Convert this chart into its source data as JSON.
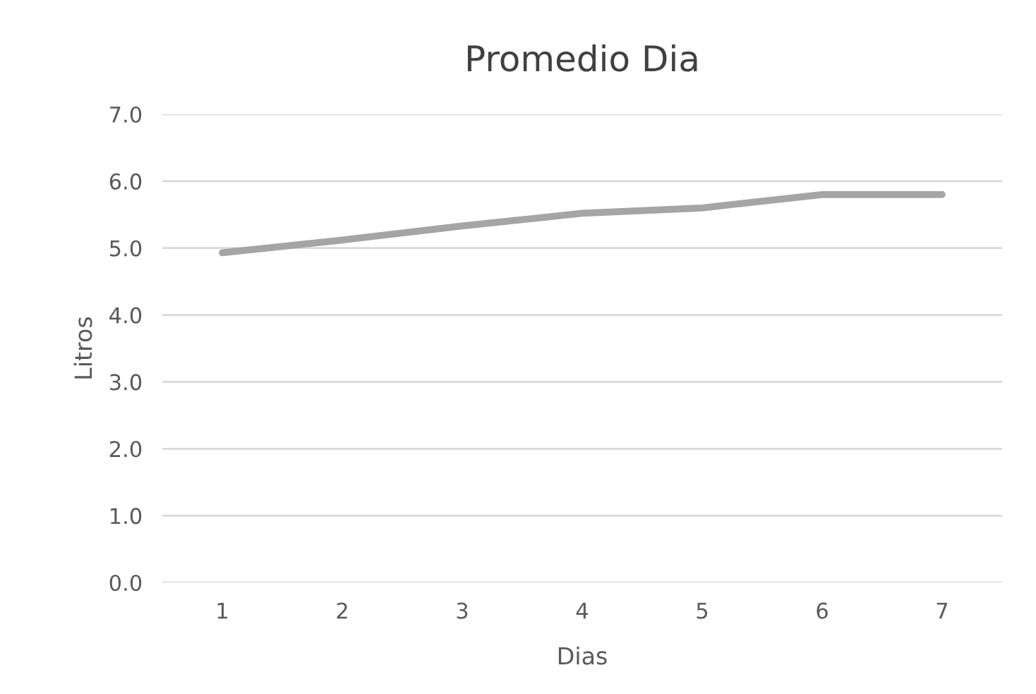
{
  "chart_data": {
    "type": "line",
    "title": "Promedio Dia",
    "xlabel": "Dias",
    "ylabel": "Litros",
    "categories": [
      "1",
      "2",
      "3",
      "4",
      "5",
      "6",
      "7"
    ],
    "series": [
      {
        "color": "#a5a5a5",
        "values": [
          4.93,
          5.12,
          5.33,
          5.52,
          5.6,
          5.8,
          5.8
        ]
      }
    ],
    "ylim": [
      0,
      7
    ],
    "yticks": [
      {
        "value": 0,
        "label": "0.0"
      },
      {
        "value": 1,
        "label": "1.0"
      },
      {
        "value": 2,
        "label": "2.0"
      },
      {
        "value": 3,
        "label": "3.0"
      },
      {
        "value": 4,
        "label": "4.0"
      },
      {
        "value": 5,
        "label": "5.0"
      },
      {
        "value": 6,
        "label": "6.0"
      },
      {
        "value": 7,
        "label": "7.0"
      }
    ],
    "grid": "y",
    "marker": "none",
    "line_style": "solid"
  }
}
